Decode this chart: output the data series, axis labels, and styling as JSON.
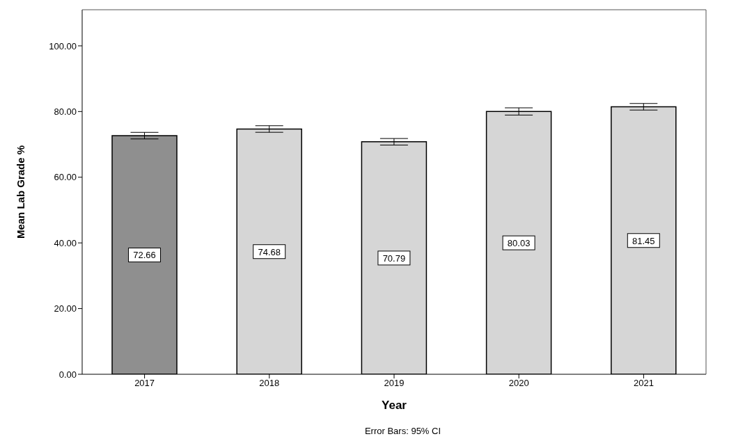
{
  "chart_data": {
    "type": "bar",
    "xlabel": "Year",
    "ylabel": "Mean Lab Grade %",
    "categories": [
      "2017",
      "2018",
      "2019",
      "2020",
      "2021"
    ],
    "values": [
      72.66,
      74.68,
      70.79,
      80.03,
      81.45
    ],
    "errors": [
      1.0,
      1.0,
      1.0,
      1.1,
      1.0
    ],
    "colors": [
      "#8f8f8f",
      "#d6d6d6",
      "#d6d6d6",
      "#d6d6d6",
      "#d6d6d6"
    ],
    "data_labels": true,
    "ylim": [
      0,
      111
    ],
    "yticks": [
      {
        "value": 0,
        "label": "0.00"
      },
      {
        "value": 20,
        "label": "20.00"
      },
      {
        "value": 40,
        "label": "40.00"
      },
      {
        "value": 60,
        "label": "60.00"
      },
      {
        "value": 80,
        "label": "80.00"
      },
      {
        "value": 100,
        "label": "100.00"
      }
    ],
    "grid": false,
    "legend": false,
    "annotations": [
      "Error Bars: 95% CI"
    ]
  }
}
